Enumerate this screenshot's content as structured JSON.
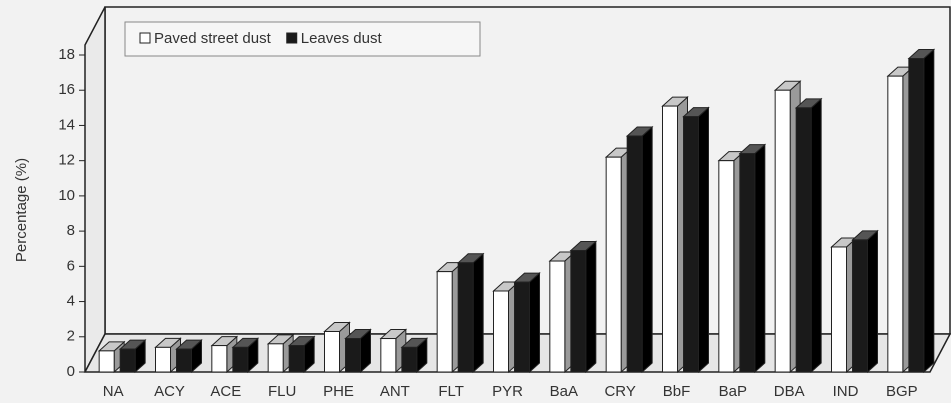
{
  "chart_data": {
    "type": "bar3d",
    "ylabel": "Percentage (%)",
    "categories": [
      "NA",
      "ACY",
      "ACE",
      "FLU",
      "PHE",
      "ANT",
      "FLT",
      "PYR",
      "BaA",
      "CRY",
      "BbF",
      "BaP",
      "DBA",
      "IND",
      "BGP"
    ],
    "series": [
      {
        "name": "Paved street dust",
        "color": "#ffffff",
        "values": [
          1.2,
          1.4,
          1.5,
          1.6,
          2.3,
          1.9,
          5.7,
          4.6,
          6.3,
          12.2,
          15.1,
          12.0,
          16.0,
          7.1,
          16.8
        ]
      },
      {
        "name": "Leaves dust",
        "color": "#1a1a1a",
        "values": [
          1.3,
          1.3,
          1.4,
          1.5,
          1.9,
          1.4,
          6.2,
          5.1,
          6.9,
          13.4,
          14.5,
          12.4,
          15.0,
          7.5,
          17.8
        ]
      }
    ],
    "ylim": [
      0,
      18
    ],
    "yticks": [
      0,
      2,
      4,
      6,
      8,
      10,
      12,
      14,
      16,
      18
    ]
  }
}
